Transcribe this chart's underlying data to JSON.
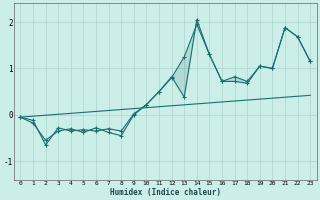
{
  "xlabel": "Humidex (Indice chaleur)",
  "xlim": [
    -0.5,
    23.5
  ],
  "ylim": [
    -1.4,
    2.4
  ],
  "yticks": [
    -1,
    0,
    1,
    2
  ],
  "bg_color": "#cceee8",
  "grid_color": "#aad4cc",
  "line_color": "#1a6e6e",
  "line1_x": [
    0,
    1,
    2,
    3,
    4,
    5,
    6,
    7,
    8,
    9,
    10,
    11,
    12,
    13,
    14,
    15,
    16,
    17,
    18,
    19,
    20,
    21,
    22,
    23
  ],
  "line1_y": [
    -0.05,
    -0.18,
    -0.55,
    -0.35,
    -0.3,
    -0.38,
    -0.28,
    -0.38,
    -0.45,
    0.0,
    0.22,
    0.5,
    0.8,
    1.25,
    1.95,
    1.3,
    0.72,
    0.82,
    0.72,
    1.05,
    1.0,
    1.88,
    1.68,
    1.15
  ],
  "line2_x": [
    0,
    1,
    2,
    3,
    4,
    5,
    6,
    7,
    8,
    9,
    10,
    11,
    12,
    13,
    14,
    15,
    16,
    17,
    18,
    19,
    20,
    21,
    22,
    23
  ],
  "line2_y": [
    -0.05,
    -0.12,
    -0.65,
    -0.28,
    -0.35,
    -0.32,
    -0.35,
    -0.3,
    -0.35,
    0.02,
    0.22,
    0.5,
    0.82,
    0.38,
    2.05,
    1.3,
    0.72,
    0.72,
    0.68,
    1.05,
    1.0,
    1.88,
    1.68,
    1.15
  ],
  "line3_x": [
    0,
    23
  ],
  "line3_y": [
    -0.05,
    0.42
  ],
  "figsize": [
    3.2,
    2.0
  ],
  "dpi": 100
}
